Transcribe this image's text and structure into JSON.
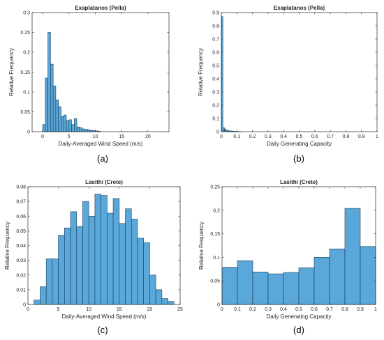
{
  "colors": {
    "bar_fill": "#5aa7d9",
    "bar_edge": "#1a3d57",
    "axis": "#262626"
  },
  "chart_data": [
    {
      "type": "bar",
      "title": "Exaplatanos (Pella)",
      "xlabel": "Daily-Averaged Wind Speed (m/s)",
      "ylabel": "Relative Frequency",
      "caption": "(a)",
      "xlim": [
        -2,
        24
      ],
      "ylim": [
        0,
        0.3
      ],
      "xticks": [
        0,
        5,
        10,
        15,
        20
      ],
      "yticks": [
        0,
        0.05,
        0.1,
        0.15,
        0.2,
        0.25,
        0.3
      ],
      "ytick_labels": [
        "0",
        "0.05",
        "0.1",
        "0.15",
        "0.2",
        "0.25",
        "0.3"
      ],
      "bin_width": 0.5,
      "x_start": 0,
      "values": [
        0.018,
        0.135,
        0.25,
        0.17,
        0.115,
        0.08,
        0.063,
        0.038,
        0.042,
        0.028,
        0.03,
        0.018,
        0.033,
        0.012,
        0.01,
        0.007,
        0.006,
        0.005,
        0.003,
        0.003,
        0.002,
        0.001
      ]
    },
    {
      "type": "bar",
      "title": "Exaplatanos (Pella)",
      "xlabel": "Daily Generating Capacity",
      "ylabel": "Relative Frequency",
      "caption": "(b)",
      "xlim": [
        0,
        1
      ],
      "ylim": [
        0,
        0.9
      ],
      "xticks": [
        0,
        0.1,
        0.2,
        0.3,
        0.4,
        0.5,
        0.6,
        0.7,
        0.8,
        0.9,
        1
      ],
      "xtick_labels": [
        "0",
        "0.1",
        "0.2",
        "0.3",
        "0.4",
        "0.5",
        "0.6",
        "0.7",
        "0.8",
        "0.9",
        "1"
      ],
      "yticks": [
        0,
        0.1,
        0.2,
        0.3,
        0.4,
        0.5,
        0.6,
        0.7,
        0.8,
        0.9
      ],
      "ytick_labels": [
        "0",
        "0.1",
        "0.2",
        "0.3",
        "0.4",
        "0.5",
        "0.6",
        "0.7",
        "0.8",
        "0.9"
      ],
      "bin_width": 0.01,
      "x_start": 0,
      "values": [
        0.87,
        0.03,
        0.02,
        0.012,
        0.008,
        0.006,
        0.005,
        0.004,
        0.003,
        0.002,
        0.002,
        0.001,
        0.001
      ]
    },
    {
      "type": "bar",
      "title": "Lasithi (Crete)",
      "xlabel": "Daily-Averaged Wind Speed (m/s)",
      "ylabel": "Relative Frequency",
      "caption": "(c)",
      "xlim": [
        0,
        25
      ],
      "ylim": [
        0,
        0.08
      ],
      "xticks": [
        0,
        5,
        10,
        15,
        20,
        25
      ],
      "yticks": [
        0,
        0.01,
        0.02,
        0.03,
        0.04,
        0.05,
        0.06,
        0.07,
        0.08
      ],
      "ytick_labels": [
        "0",
        "0.01",
        "0.02",
        "0.03",
        "0.04",
        "0.05",
        "0.06",
        "0.07",
        "0.08"
      ],
      "bin_width": 1,
      "x_start": 1,
      "values": [
        0.003,
        0.012,
        0.031,
        0.031,
        0.047,
        0.052,
        0.063,
        0.053,
        0.07,
        0.06,
        0.075,
        0.074,
        0.062,
        0.072,
        0.055,
        0.065,
        0.058,
        0.045,
        0.042,
        0.02,
        0.01,
        0.004,
        0.002
      ]
    },
    {
      "type": "bar",
      "title": "Lasithi (Crete)",
      "xlabel": "Daily Generating Capacity",
      "ylabel": "Relative Frequency",
      "caption": "(d)",
      "xlim": [
        0,
        1
      ],
      "ylim": [
        0,
        0.25
      ],
      "xticks": [
        0,
        0.1,
        0.2,
        0.3,
        0.4,
        0.5,
        0.6,
        0.7,
        0.8,
        0.9,
        1
      ],
      "xtick_labels": [
        "0",
        "0.1",
        "0.2",
        "0.3",
        "0.4",
        "0.5",
        "0.6",
        "0.7",
        "0.8",
        "0.9",
        "1"
      ],
      "yticks": [
        0,
        0.05,
        0.1,
        0.15,
        0.2,
        0.25
      ],
      "ytick_labels": [
        "0",
        "0.05",
        "0.1",
        "0.15",
        "0.2",
        "0.25"
      ],
      "bin_width": 0.1,
      "x_start": 0,
      "values": [
        0.079,
        0.093,
        0.069,
        0.065,
        0.068,
        0.078,
        0.1,
        0.118,
        0.204,
        0.123
      ]
    }
  ]
}
